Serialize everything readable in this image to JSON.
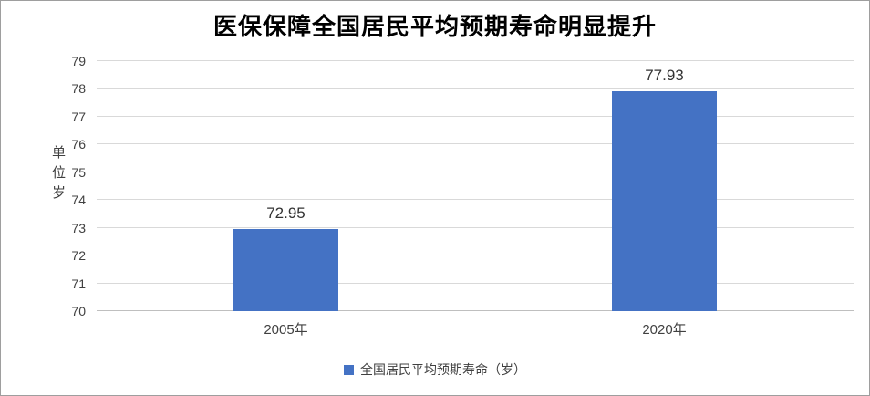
{
  "chart_data": {
    "type": "bar",
    "title": "医保保障全国居民平均预期寿命明显提升",
    "categories": [
      "2005年",
      "2020年"
    ],
    "values": [
      72.95,
      77.93
    ],
    "data_labels": [
      "72.95",
      "77.93"
    ],
    "ylabel": "单位岁",
    "ylim": [
      70,
      79
    ],
    "ytick_step": 1,
    "grid": true,
    "bar_color": "#4472c4",
    "legend": {
      "position": "bottom",
      "label": "全国居民平均预期寿命（岁）"
    }
  }
}
